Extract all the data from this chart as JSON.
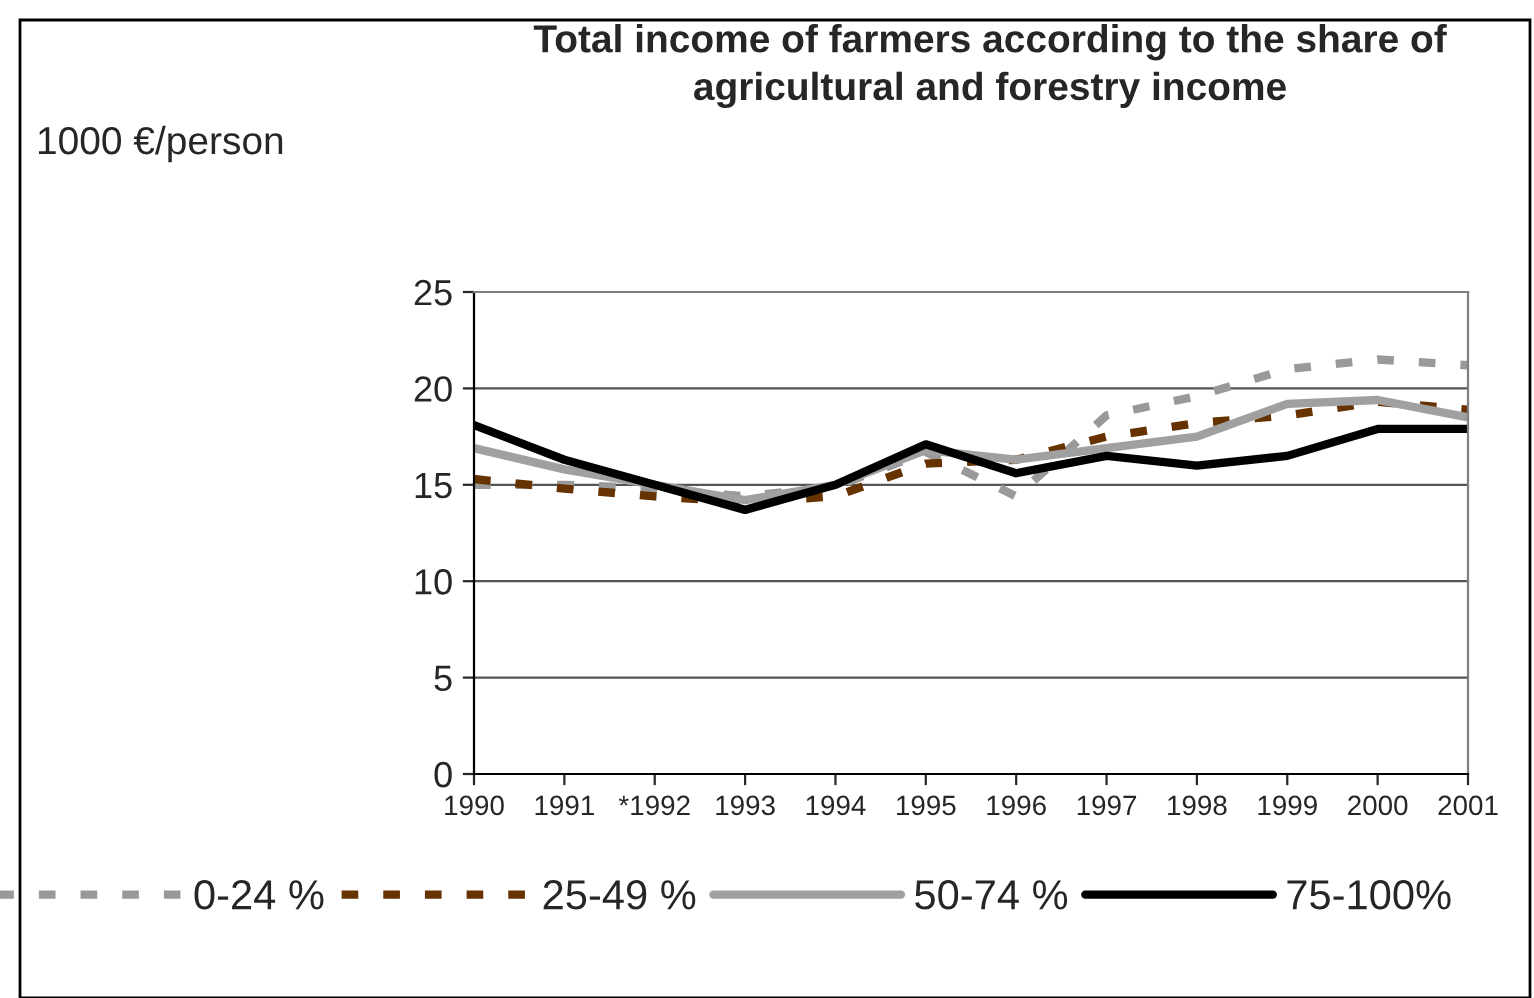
{
  "chart_data": {
    "type": "line",
    "title": "Total income of farmers according to the share of\nagricultural and forestry income",
    "ylabel": "1000 €/person",
    "categories": [
      "1990",
      "1991",
      "*1992",
      "1993",
      "1994",
      "1995",
      "1996",
      "1997",
      "1998",
      "1999",
      "2000",
      "2001"
    ],
    "series": [
      {
        "name": "0-24 %",
        "color": "#999999",
        "line_style": "dashed",
        "values": [
          15.0,
          15.0,
          14.8,
          14.4,
          14.9,
          16.7,
          14.4,
          18.6,
          19.6,
          21.0,
          21.5,
          21.2
        ]
      },
      {
        "name": "25-49 %",
        "color": "#663300",
        "line_style": "dashed",
        "values": [
          15.3,
          14.8,
          14.4,
          14.1,
          14.4,
          16.1,
          16.3,
          17.5,
          18.2,
          18.6,
          19.3,
          18.9
        ]
      },
      {
        "name": "50-74 %",
        "color": "#a0a0a0",
        "line_style": "solid",
        "values": [
          16.9,
          15.8,
          15.0,
          14.2,
          15.0,
          16.8,
          16.3,
          16.9,
          17.5,
          19.2,
          19.4,
          18.5
        ]
      },
      {
        "name": "75-100%",
        "color": "#000000",
        "line_style": "solid",
        "values": [
          18.1,
          16.3,
          15.0,
          13.7,
          15.0,
          17.1,
          15.6,
          16.5,
          16.0,
          16.5,
          17.9,
          17.9
        ]
      }
    ],
    "ylim": [
      0,
      25
    ],
    "yticks": [
      0,
      5,
      10,
      15,
      20,
      25
    ],
    "grid": "y",
    "legend": "bottom",
    "marker": "none"
  }
}
